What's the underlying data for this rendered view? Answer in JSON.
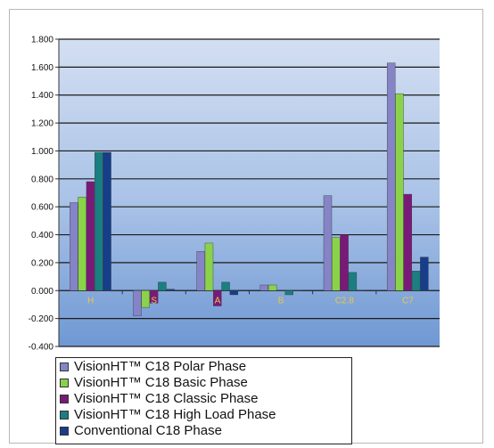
{
  "chart_data": {
    "type": "bar",
    "categories": [
      "H",
      "S",
      "A",
      "B",
      "C2.8",
      "C7"
    ],
    "ylim": [
      -0.4,
      1.8
    ],
    "y_ticks": [
      "1.800",
      "1.600",
      "1.400",
      "1.200",
      "1.000",
      "0.800",
      "0.600",
      "0.400",
      "0.200",
      "0.000",
      "-0.200",
      "-0.400"
    ],
    "series": [
      {
        "name": "VisionHT™ C18 Polar Phase",
        "color": "#8484c6",
        "values": [
          0.63,
          -0.18,
          0.28,
          0.04,
          0.68,
          1.63
        ]
      },
      {
        "name": "VisionHT™ C18 Basic Phase",
        "color": "#8ad24a",
        "values": [
          0.67,
          -0.12,
          0.34,
          0.04,
          0.38,
          1.41
        ]
      },
      {
        "name": "VisionHT™ C18 Classic Phase",
        "color": "#7a1a78",
        "values": [
          0.78,
          -0.09,
          -0.11,
          0.0,
          0.4,
          0.69
        ]
      },
      {
        "name": "VisionHT™ C18 High Load Phase",
        "color": "#1a7f80",
        "values": [
          0.99,
          0.06,
          0.06,
          -0.03,
          0.13,
          0.14
        ]
      },
      {
        "name": "Conventional C18 Phase",
        "color": "#163e8a",
        "values": [
          0.99,
          0.01,
          -0.03,
          0.0,
          0.0,
          0.24
        ]
      }
    ],
    "grid": true,
    "legend_position": "bottom"
  }
}
